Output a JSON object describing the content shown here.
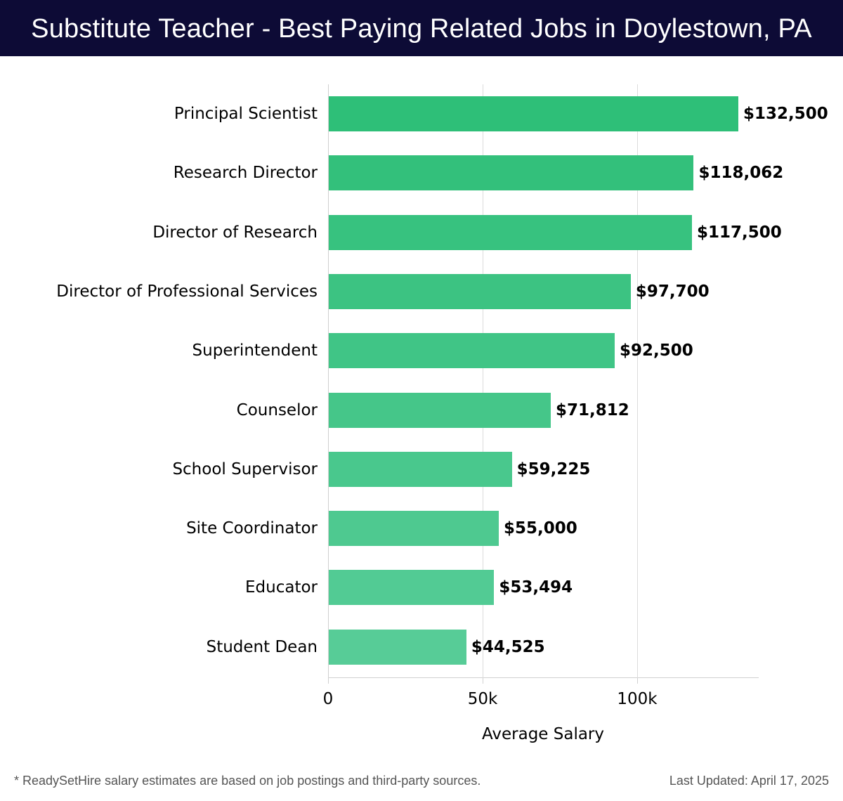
{
  "header": {
    "title": "Substitute Teacher - Best Paying Related Jobs in Doylestown, PA"
  },
  "footer": {
    "note": "* ReadySetHire salary estimates are based on job postings and third-party sources.",
    "updated": "Last Updated: April 17, 2025"
  },
  "colors": {
    "header_bg": "#0d0b36",
    "bar_top": "#2ebf78",
    "bar_bottom": "#57cc97"
  },
  "chart_data": {
    "type": "bar",
    "orientation": "horizontal",
    "title": "Substitute Teacher - Best Paying Related Jobs in Doylestown, PA",
    "xlabel": "Average Salary",
    "ylabel": "",
    "categories": [
      "Principal Scientist",
      "Research Director",
      "Director of Research",
      "Director of Professional Services",
      "Superintendent",
      "Counselor",
      "School Supervisor",
      "Site Coordinator",
      "Educator",
      "Student Dean"
    ],
    "values": [
      132500,
      118062,
      117500,
      97700,
      92500,
      71812,
      59225,
      55000,
      53494,
      44525
    ],
    "value_labels": [
      "$132,500",
      "$118,062",
      "$117,500",
      "$97,700",
      "$92,500",
      "$71,812",
      "$59,225",
      "$55,000",
      "$53,494",
      "$44,525"
    ],
    "xticks": [
      0,
      50000,
      100000
    ],
    "xtick_labels": [
      "0",
      "50k",
      "100k"
    ],
    "xlim": [
      0,
      139000
    ],
    "grid": true,
    "legend": null
  }
}
